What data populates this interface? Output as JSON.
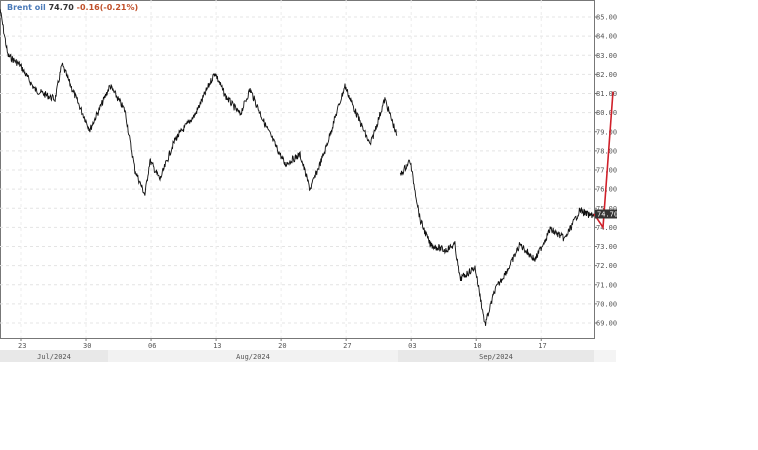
{
  "chart_data": {
    "type": "line",
    "title": "Brent oil",
    "last_price": "74.70",
    "change": "-0.16(-0.21%)",
    "price_label": "74.70",
    "ylim": [
      68.5,
      85.5
    ],
    "yticks": [
      "85.00",
      "84.00",
      "83.00",
      "82.00",
      "81.00",
      "80.00",
      "79.00",
      "78.00",
      "77.00",
      "76.00",
      "75.00",
      "74.00",
      "73.00",
      "72.00",
      "71.00",
      "70.00",
      "69.00"
    ],
    "xticks": [
      {
        "date": "2024-07-23",
        "label": "23"
      },
      {
        "date": "2024-07-30",
        "label": "30"
      },
      {
        "date": "2024-08-06",
        "label": "06"
      },
      {
        "date": "2024-08-13",
        "label": "13"
      },
      {
        "date": "2024-08-20",
        "label": "20"
      },
      {
        "date": "2024-08-27",
        "label": "27"
      },
      {
        "date": "2024-09-03",
        "label": "03"
      },
      {
        "date": "2024-09-10",
        "label": "10"
      },
      {
        "date": "2024-09-17",
        "label": "17"
      }
    ],
    "months": [
      {
        "label": "Jul/2024"
      },
      {
        "label": "Aug/2024"
      },
      {
        "label": "Sep/2024"
      }
    ],
    "grid": true,
    "colors": {
      "price": "#111111",
      "forecast": "#d0202a",
      "legend_name": "#4a7ab8",
      "change": "#c0502a"
    },
    "series": [
      {
        "segments": [
          [
            [
              "2024-07-20T18:00",
              85.4
            ],
            [
              "2024-07-21T14:00",
              83.0
            ],
            [
              "2024-07-22T21:00",
              82.5
            ],
            [
              "2024-07-24T12:00",
              81.2
            ],
            [
              "2024-07-26T16:00",
              80.7
            ],
            [
              "2024-07-27T10:00",
              82.5
            ],
            [
              "2024-07-28T19:00",
              80.9
            ],
            [
              "2024-07-30T10:00",
              79.1
            ],
            [
              "2024-08-01T14:00",
              81.4
            ],
            [
              "2024-08-03T05:00",
              80.1
            ],
            [
              "2024-08-04T06:00",
              77.0
            ],
            [
              "2024-08-05T08:00",
              75.7
            ],
            [
              "2024-08-05T21:00",
              77.5
            ],
            [
              "2024-08-06T23:00",
              76.5
            ],
            [
              "2024-08-08T14:00",
              78.6
            ],
            [
              "2024-08-10T18:00",
              79.9
            ],
            [
              "2024-08-12T21:00",
              82.1
            ],
            [
              "2024-08-13T23:00",
              80.9
            ],
            [
              "2024-08-15T14:00",
              79.9
            ],
            [
              "2024-08-16T16:00",
              81.2
            ],
            [
              "2024-08-18T06:00",
              79.4
            ],
            [
              "2024-08-20T10:00",
              77.3
            ],
            [
              "2024-08-22T01:00",
              77.8
            ],
            [
              "2024-08-23T03:00",
              76.0
            ],
            [
              "2024-08-24T17:00",
              78.0
            ],
            [
              "2024-08-26T21:00",
              81.4
            ],
            [
              "2024-08-27T23:00",
              80.1
            ],
            [
              "2024-08-29T14:00",
              78.3
            ],
            [
              "2024-08-31T04:00",
              80.7
            ],
            [
              "2024-09-01T11:00",
              78.8
            ]
          ],
          [
            [
              "2024-09-01T19:00",
              76.7
            ],
            [
              "2024-09-02T21:00",
              77.5
            ],
            [
              "2024-09-03T23:00",
              74.4
            ],
            [
              "2024-09-05T01:00",
              73.1
            ],
            [
              "2024-09-06T15:00",
              72.8
            ],
            [
              "2024-09-07T17:00",
              73.1
            ],
            [
              "2024-09-08T06:00",
              71.3
            ],
            [
              "2024-09-09T21:00",
              71.9
            ],
            [
              "2024-09-10T23:00",
              68.9
            ],
            [
              "2024-09-12T00:00",
              70.7
            ],
            [
              "2024-09-13T15:00",
              72.0
            ],
            [
              "2024-09-14T17:00",
              73.1
            ],
            [
              "2024-09-16T08:00",
              72.3
            ],
            [
              "2024-09-17T23:00",
              73.9
            ],
            [
              "2024-09-19T13:00",
              73.4
            ],
            [
              "2024-09-21T04:00",
              74.9
            ],
            [
              "2024-09-22T06:00",
              74.6
            ],
            [
              "2024-09-22T16:00",
              74.7
            ]
          ]
        ]
      },
      {
        "forecast": [
          74.7,
          74.0,
          81.1
        ]
      }
    ]
  }
}
